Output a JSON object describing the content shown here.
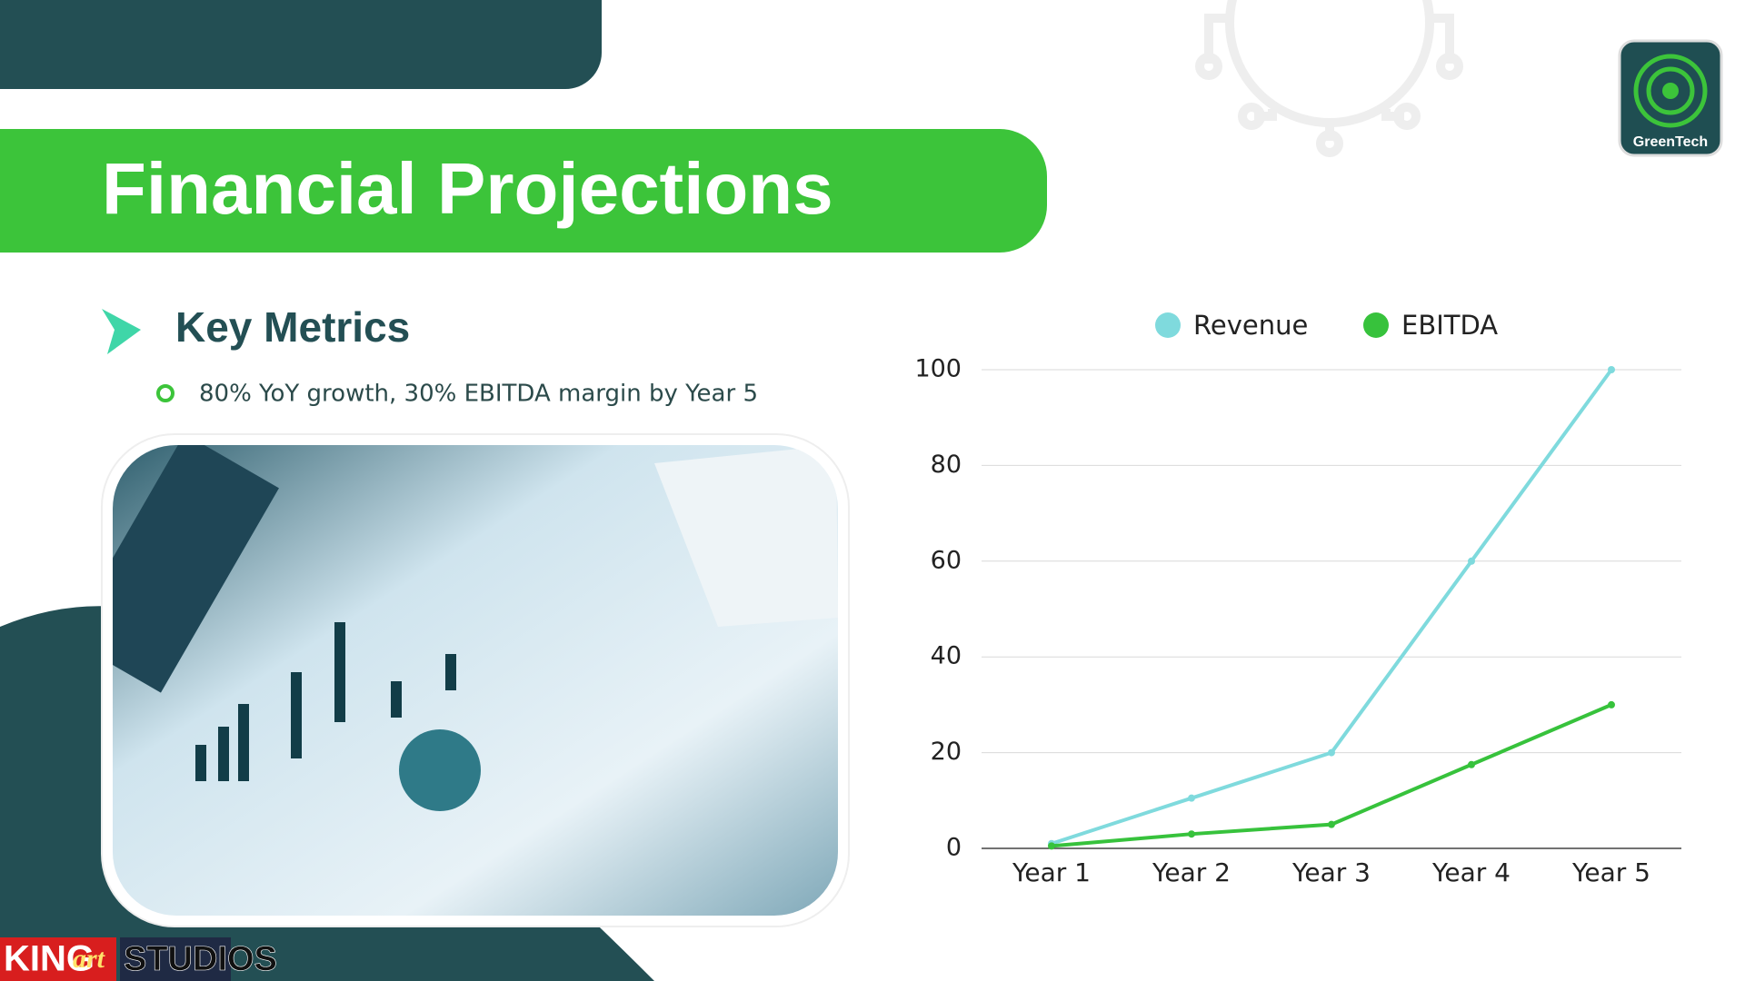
{
  "title": "Financial Projections",
  "section_heading": "Key Metrics",
  "bullet": "80% YoY growth, 30% EBITDA margin by Year 5",
  "logo_text": "GreenTech",
  "brand": {
    "king": "KING",
    "art": "art",
    "studios": "STUDIOS"
  },
  "chart_data": {
    "type": "line",
    "categories": [
      "Year 1",
      "Year 2",
      "Year 3",
      "Year 4",
      "Year 5"
    ],
    "series": [
      {
        "name": "Revenue",
        "color": "#7fdadd",
        "values": [
          1,
          10.5,
          20,
          60,
          100
        ]
      },
      {
        "name": "EBITDA",
        "color": "#37c23c",
        "values": [
          0.5,
          3,
          5,
          17.5,
          30
        ]
      }
    ],
    "ylim": [
      0,
      100
    ],
    "yticks": [
      0,
      20,
      40,
      60,
      80,
      100
    ],
    "grid": true,
    "legend": "top"
  }
}
